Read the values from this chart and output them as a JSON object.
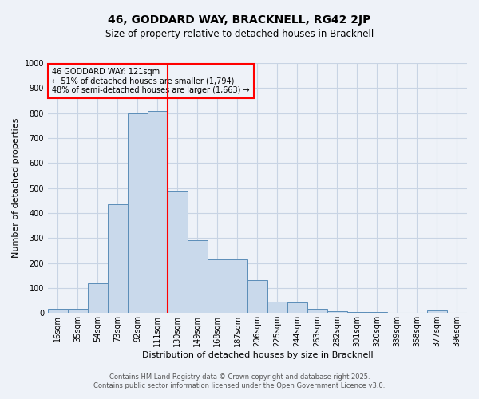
{
  "title_line1": "46, GODDARD WAY, BRACKNELL, RG42 2JP",
  "title_line2": "Size of property relative to detached houses in Bracknell",
  "xlabel": "Distribution of detached houses by size in Bracknell",
  "ylabel": "Number of detached properties",
  "categories": [
    "16sqm",
    "35sqm",
    "54sqm",
    "73sqm",
    "92sqm",
    "111sqm",
    "130sqm",
    "149sqm",
    "168sqm",
    "187sqm",
    "206sqm",
    "225sqm",
    "244sqm",
    "263sqm",
    "282sqm",
    "301sqm",
    "320sqm",
    "339sqm",
    "358sqm",
    "377sqm",
    "396sqm"
  ],
  "values": [
    15,
    15,
    120,
    435,
    800,
    810,
    490,
    290,
    215,
    215,
    130,
    45,
    42,
    15,
    8,
    5,
    3,
    1,
    0,
    10,
    0
  ],
  "bar_color": "#c9d9eb",
  "bar_edge_color": "#5b8db8",
  "grid_color": "#c8d4e4",
  "vline_x": 5.5,
  "vline_color": "red",
  "annotation_title": "46 GODDARD WAY: 121sqm",
  "annotation_line2": "← 51% of detached houses are smaller (1,794)",
  "annotation_line3": "48% of semi-detached houses are larger (1,663) →",
  "annotation_box_color": "red",
  "ylim": [
    0,
    1000
  ],
  "yticks": [
    0,
    100,
    200,
    300,
    400,
    500,
    600,
    700,
    800,
    900,
    1000
  ],
  "footnote_line1": "Contains HM Land Registry data © Crown copyright and database right 2025.",
  "footnote_line2": "Contains public sector information licensed under the Open Government Licence v3.0.",
  "background_color": "#eef2f8",
  "title_fontsize": 10,
  "subtitle_fontsize": 8.5,
  "xlabel_fontsize": 8,
  "ylabel_fontsize": 8,
  "tick_fontsize": 7,
  "annotation_fontsize": 7,
  "footnote_fontsize": 6
}
